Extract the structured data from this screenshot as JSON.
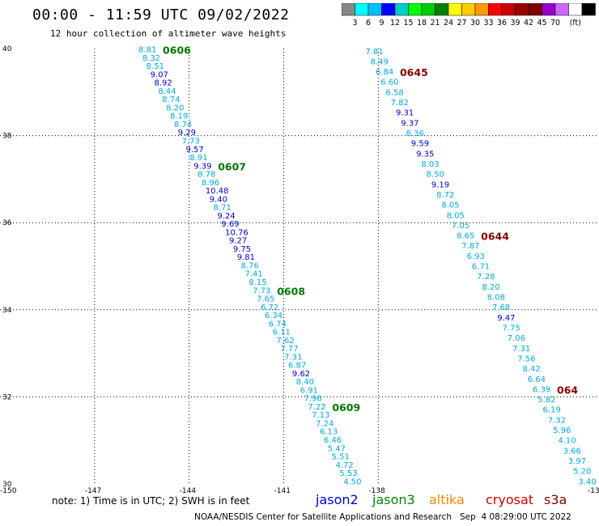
{
  "title": "00:00 - 11:59 UTC 09/02/2022",
  "subtitle": "12 hour collection of altimeter wave heights",
  "legend": {
    "colors": [
      "#888888",
      "#00ffff",
      "#00bfff",
      "#0000ff",
      "#00cccc",
      "#00ff00",
      "#00cc00",
      "#008000",
      "#ffff00",
      "#ffcc00",
      "#ff9900",
      "#ff0000",
      "#cc0000",
      "#990000",
      "#800000",
      "#9900cc",
      "#cc66ff",
      "#ffffff",
      "#000000"
    ],
    "labels": [
      "3",
      "6",
      "9",
      "12",
      "15",
      "18",
      "21",
      "24",
      "27",
      "30",
      "33",
      "36",
      "39",
      "42",
      "45",
      "70",
      "(ft)"
    ]
  },
  "map": {
    "lon_range": [
      -150,
      -131
    ],
    "lat_range": [
      30,
      40
    ],
    "x_ticks": [
      "-150",
      "-147",
      "-144",
      "-141",
      "-138",
      "-13"
    ],
    "y_ticks": [
      "40",
      "38",
      "36",
      "34",
      "32",
      "30"
    ],
    "grid_lons": [
      -147,
      -144,
      -141,
      -138
    ],
    "grid_lats": [
      38,
      36,
      34,
      32
    ]
  },
  "track_a": {
    "values": [
      "8.81",
      "8.32",
      "8.51",
      "9.07",
      "8.92",
      "8.44",
      "8.74",
      "8.20",
      "8.19",
      "8.74",
      "9.29",
      "7.73",
      "9.57",
      "8.91",
      "9.39",
      "8.78",
      "8.96",
      "10.48",
      "9.40",
      "8.71",
      "9.24",
      "9.69",
      "10.76",
      "9.27",
      "9.75",
      "9.81",
      "8.76",
      "7.41",
      "8.15",
      "7.73",
      "7.65",
      "6.72",
      "6.34",
      "6.74",
      "6.11",
      "7.62",
      "7.77",
      "7.31",
      "6.87",
      "9.62",
      "8.40",
      "6.91",
      "7.96",
      "7.22",
      "7.13",
      "7.24",
      "6.13",
      "6.46",
      "5.47",
      "5.51",
      "4.72",
      "5.53",
      "4.50"
    ],
    "colors": [
      "c",
      "c",
      "c",
      "b",
      "b",
      "c",
      "c",
      "c",
      "c",
      "c",
      "b",
      "c",
      "b",
      "c",
      "b",
      "c",
      "c",
      "b",
      "b",
      "c",
      "b",
      "b",
      "b",
      "b",
      "b",
      "b",
      "c",
      "c",
      "c",
      "c",
      "c",
      "c",
      "c",
      "c",
      "c",
      "c",
      "c",
      "c",
      "c",
      "b",
      "c",
      "c",
      "c",
      "c",
      "c",
      "c",
      "c",
      "c",
      "c",
      "c",
      "c",
      "c",
      "c"
    ],
    "time_labels": [
      {
        "text": "0606",
        "idx": 0
      },
      {
        "text": "0607",
        "idx": 14
      },
      {
        "text": "0608",
        "idx": 29
      },
      {
        "text": "0609",
        "idx": 43
      }
    ],
    "start": [
      -145.3,
      39.97
    ],
    "end": [
      -138.8,
      30.05
    ]
  },
  "track_b": {
    "values": [
      "7.81",
      "8.49",
      "6.84",
      "6.60",
      "6.58",
      "7.82",
      "9.31",
      "9.37",
      "8.36",
      "9.59",
      "9.35",
      "8.03",
      "8.50",
      "9.19",
      "8.72",
      "8.05",
      "8.05",
      "7.05",
      "8.65",
      "7.87",
      "6.93",
      "6.71",
      "7.28",
      "8.20",
      "8.08",
      "7.68",
      "9.47",
      "7.75",
      "7.06",
      "7.31",
      "7.56",
      "8.42",
      "6.64",
      "6.39",
      "5.82",
      "6.19",
      "7.32",
      "5.96",
      "4.10",
      "3.66",
      "3.97",
      "5.20",
      "3.40"
    ],
    "colors": [
      "c",
      "c",
      "c",
      "c",
      "c",
      "c",
      "b",
      "b",
      "c",
      "b",
      "b",
      "c",
      "c",
      "b",
      "c",
      "c",
      "c",
      "c",
      "c",
      "c",
      "c",
      "c",
      "c",
      "c",
      "c",
      "c",
      "b",
      "c",
      "c",
      "c",
      "c",
      "c",
      "c",
      "c",
      "c",
      "c",
      "c",
      "c",
      "c",
      "c",
      "c",
      "c",
      "c"
    ],
    "time_labels": [
      {
        "text": "0645",
        "idx": 2
      },
      {
        "text": "0644",
        "idx": 18
      },
      {
        "text": "064",
        "idx": 33
      }
    ],
    "start": [
      -138.1,
      39.93
    ],
    "end": [
      -131.35,
      30.05
    ]
  },
  "track_colors": {
    "c": "#00aadd",
    "b": "#0000cc"
  },
  "time_label_colors": {
    "track_a": "#007700",
    "track_b": "#880000"
  },
  "note": "note: 1) Time is in UTC; 2) SWH is in feet",
  "satellites": [
    {
      "name": "jason2",
      "color": "#0000cc"
    },
    {
      "name": "jason3",
      "color": "#008800"
    },
    {
      "name": "altika",
      "color": "#ff8800"
    },
    {
      "name": "cryosat",
      "color": "#cc0000"
    },
    {
      "name": "s3a",
      "color": "#880000"
    }
  ],
  "credit": "NOAA/NESDIS Center for Satellite Applications and Research   Sep  4 08:29:00 UTC 2022"
}
